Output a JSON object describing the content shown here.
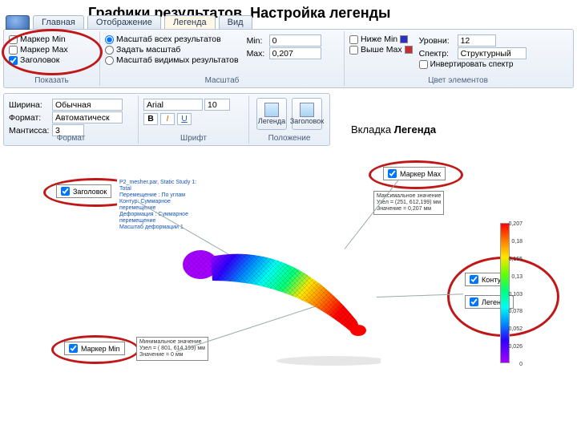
{
  "page_title": "Графики результатов. Настройка легенды",
  "callout_tab": "Вкладка ",
  "callout_tab_bold": "Легенда",
  "tabs": {
    "home": "Главная",
    "display": "Отображение",
    "legend": "Легенда",
    "view": "Вид"
  },
  "show": {
    "marker_min": "Маркер Min",
    "marker_max": "Маркер Max",
    "title": "Заголовок",
    "group": "Показать"
  },
  "scale": {
    "all": "Масштаб всех результатов",
    "set": "Задать масштаб",
    "visible": "Масштаб видимых результатов",
    "min_label": "Min:",
    "max_label": "Max:",
    "min_val": "0",
    "max_val": "0,207",
    "group": "Масштаб"
  },
  "colors": {
    "below_min": "Ниже Min",
    "above_max": "Выше Max",
    "below_chip": "#2e2ec4",
    "above_chip": "#c42e2e",
    "levels_label": "Уровни:",
    "levels_val": "12",
    "spectrum_label": "Спектр:",
    "spectrum_val": "Структурный",
    "invert": "Инвертировать спектр",
    "group": "Цвет элементов"
  },
  "format": {
    "width_label": "Ширина:",
    "width_val": "Обычная",
    "format_label": "Формат:",
    "format_val": "Автоматическ",
    "mantissa_label": "Мантисса:",
    "mantissa_val": "3",
    "group": "Формат"
  },
  "font": {
    "face": "Arial",
    "size": "10",
    "group": "Шрифт"
  },
  "position": {
    "legend_btn": "Легенда",
    "title_btn": "Заголовок",
    "group": "Положение"
  },
  "anno": {
    "title_chk": "Заголовок",
    "marker_max": "Маркер Max",
    "marker_min": "Маркер Min",
    "contour": "Контур",
    "legend": "Легенда",
    "max_box_l1": "Максимальное значение",
    "max_box_l2": "Узел = (251, 612,199) мм",
    "max_box_l3": "Значение = 0,207 мм",
    "min_box_l1": "Минимальное значение",
    "min_box_l2": "Узел = ( 801, 614,199) мм",
    "min_box_l3": "Значение = 0 мм",
    "header_l1": "P2_mesher.par, Static Study 1: Total",
    "header_l2": "Перемещение : По углам",
    "header_l3": "Контур: Суммарное перемещение",
    "header_l4": "Деформация : Суммарное перемещение",
    "header_l5": "Масштаб деформации 1"
  },
  "legend_bar": {
    "ticks": [
      "0,207",
      "0,18",
      "0,155",
      "0,13",
      "0,103",
      "0,078",
      "0,052",
      "0,026",
      "0"
    ]
  }
}
